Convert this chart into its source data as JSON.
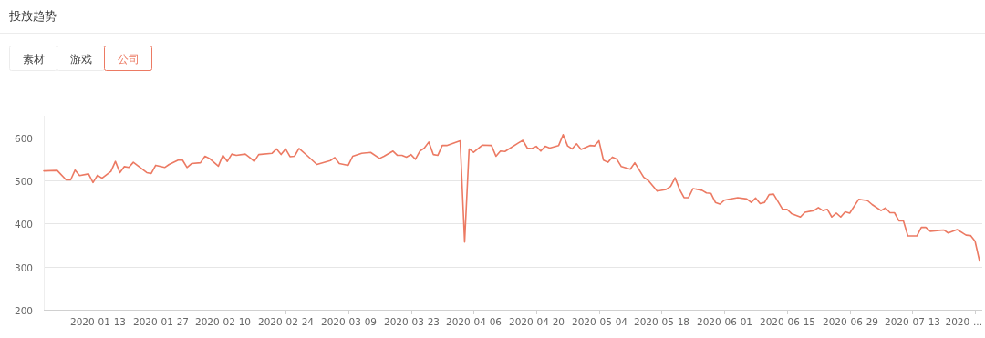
{
  "chart_data": {
    "type": "line",
    "title": "投放趋势",
    "annotations": [
      "素材",
      "游戏",
      "公司"
    ],
    "x": [
      "2020-01-01",
      "2020-01-04",
      "2020-01-06",
      "2020-01-07",
      "2020-01-08",
      "2020-01-09",
      "2020-01-11",
      "2020-01-12",
      "2020-01-13",
      "2020-01-14",
      "2020-01-16",
      "2020-01-17",
      "2020-01-18",
      "2020-01-19",
      "2020-01-20",
      "2020-01-21",
      "2020-01-24",
      "2020-01-25",
      "2020-01-26",
      "2020-01-28",
      "2020-01-29",
      "2020-01-31",
      "2020-02-01",
      "2020-02-02",
      "2020-02-03",
      "2020-02-05",
      "2020-02-06",
      "2020-02-07",
      "2020-02-09",
      "2020-02-10",
      "2020-02-11",
      "2020-02-12",
      "2020-02-13",
      "2020-02-15",
      "2020-02-16",
      "2020-02-17",
      "2020-02-18",
      "2020-02-21",
      "2020-02-22",
      "2020-02-23",
      "2020-02-24",
      "2020-02-25",
      "2020-02-26",
      "2020-02-27",
      "2020-02-29",
      "2020-03-02",
      "2020-03-05",
      "2020-03-06",
      "2020-03-07",
      "2020-03-09",
      "2020-03-10",
      "2020-03-12",
      "2020-03-14",
      "2020-03-16",
      "2020-03-17",
      "2020-03-19",
      "2020-03-20",
      "2020-03-21",
      "2020-03-22",
      "2020-03-23",
      "2020-03-24",
      "2020-03-25",
      "2020-03-26",
      "2020-03-27",
      "2020-03-28",
      "2020-03-29",
      "2020-03-30",
      "2020-03-31",
      "2020-04-03",
      "2020-04-04",
      "2020-04-05",
      "2020-04-06",
      "2020-04-08",
      "2020-04-10",
      "2020-04-11",
      "2020-04-12",
      "2020-04-13",
      "2020-04-16",
      "2020-04-17",
      "2020-04-18",
      "2020-04-19",
      "2020-04-20",
      "2020-04-21",
      "2020-04-22",
      "2020-04-23",
      "2020-04-25",
      "2020-04-26",
      "2020-04-27",
      "2020-04-28",
      "2020-04-29",
      "2020-04-30",
      "2020-05-02",
      "2020-05-03",
      "2020-05-04",
      "2020-05-05",
      "2020-05-06",
      "2020-05-07",
      "2020-05-08",
      "2020-05-09",
      "2020-05-11",
      "2020-05-12",
      "2020-05-14",
      "2020-05-15",
      "2020-05-17",
      "2020-05-19",
      "2020-05-20",
      "2020-05-21",
      "2020-05-22",
      "2020-05-23",
      "2020-05-24",
      "2020-05-25",
      "2020-05-27",
      "2020-05-28",
      "2020-05-29",
      "2020-05-30",
      "2020-05-31",
      "2020-06-01",
      "2020-06-02",
      "2020-06-04",
      "2020-06-06",
      "2020-06-07",
      "2020-06-08",
      "2020-06-09",
      "2020-06-10",
      "2020-06-11",
      "2020-06-12",
      "2020-06-14",
      "2020-06-15",
      "2020-06-16",
      "2020-06-18",
      "2020-06-19",
      "2020-06-21",
      "2020-06-22",
      "2020-06-23",
      "2020-06-24",
      "2020-06-25",
      "2020-06-26",
      "2020-06-27",
      "2020-06-28",
      "2020-06-29",
      "2020-07-01",
      "2020-07-03",
      "2020-07-04",
      "2020-07-06",
      "2020-07-07",
      "2020-07-08",
      "2020-07-09",
      "2020-07-10",
      "2020-07-11",
      "2020-07-12",
      "2020-07-14",
      "2020-07-15",
      "2020-07-16",
      "2020-07-17",
      "2020-07-19",
      "2020-07-20",
      "2020-07-21",
      "2020-07-23",
      "2020-07-25",
      "2020-07-26",
      "2020-07-27",
      "2020-07-28"
    ],
    "series": [
      {
        "color": "#ec7a63",
        "values": [
          522,
          523,
          501,
          501,
          524,
          511,
          515,
          495,
          512,
          505,
          521,
          544,
          518,
          532,
          530,
          542,
          518,
          516,
          535,
          530,
          537,
          547,
          547,
          530,
          539,
          541,
          556,
          551,
          533,
          558,
          544,
          561,
          558,
          561,
          553,
          544,
          560,
          563,
          573,
          560,
          573,
          555,
          556,
          574,
          556,
          537,
          546,
          553,
          539,
          535,
          556,
          563,
          565,
          551,
          556,
          568,
          558,
          558,
          554,
          560,
          549,
          568,
          575,
          589,
          560,
          558,
          581,
          581,
          592,
          357,
          573,
          565,
          582,
          581,
          556,
          568,
          567,
          587,
          593,
          575,
          574,
          579,
          568,
          579,
          575,
          581,
          606,
          580,
          573,
          585,
          572,
          581,
          580,
          592,
          547,
          542,
          554,
          549,
          532,
          526,
          541,
          507,
          500,
          475,
          479,
          486,
          506,
          479,
          460,
          460,
          481,
          477,
          471,
          470,
          449,
          445,
          454,
          456,
          460,
          457,
          449,
          459,
          446,
          449,
          467,
          468,
          433,
          433,
          423,
          415,
          426,
          430,
          437,
          430,
          433,
          415,
          424,
          415,
          427,
          424,
          456,
          453,
          444,
          430,
          436,
          425,
          425,
          406,
          406,
          371,
          371,
          391,
          391,
          382,
          384,
          385,
          378,
          386,
          373,
          372,
          359,
          313
        ]
      }
    ],
    "xlim": [
      "2020-01-01",
      "2020-07-28"
    ],
    "xticks": [
      {
        "value": "2020-01-13",
        "label": "2020-01-13"
      },
      {
        "value": "2020-01-27",
        "label": "2020-01-27"
      },
      {
        "value": "2020-02-10",
        "label": "2020-02-10"
      },
      {
        "value": "2020-02-24",
        "label": "2020-02-24"
      },
      {
        "value": "2020-03-09",
        "label": "2020-03-09"
      },
      {
        "value": "2020-03-23",
        "label": "2020-03-23"
      },
      {
        "value": "2020-04-06",
        "label": "2020-04-06"
      },
      {
        "value": "2020-04-20",
        "label": "2020-04-20"
      },
      {
        "value": "2020-05-04",
        "label": "2020-05-04"
      },
      {
        "value": "2020-05-18",
        "label": "2020-05-18"
      },
      {
        "value": "2020-06-01",
        "label": "2020-06-01"
      },
      {
        "value": "2020-06-15",
        "label": "2020-06-15"
      },
      {
        "value": "2020-06-29",
        "label": "2020-06-29"
      },
      {
        "value": "2020-07-13",
        "label": "2020-07-13"
      },
      {
        "value": "2020-07-27",
        "label": "2020-..."
      }
    ],
    "ylim": [
      200,
      650
    ],
    "yticks": [
      200,
      300,
      400,
      500,
      600
    ],
    "grid": "y",
    "marker": "none",
    "line_style": "solid"
  }
}
